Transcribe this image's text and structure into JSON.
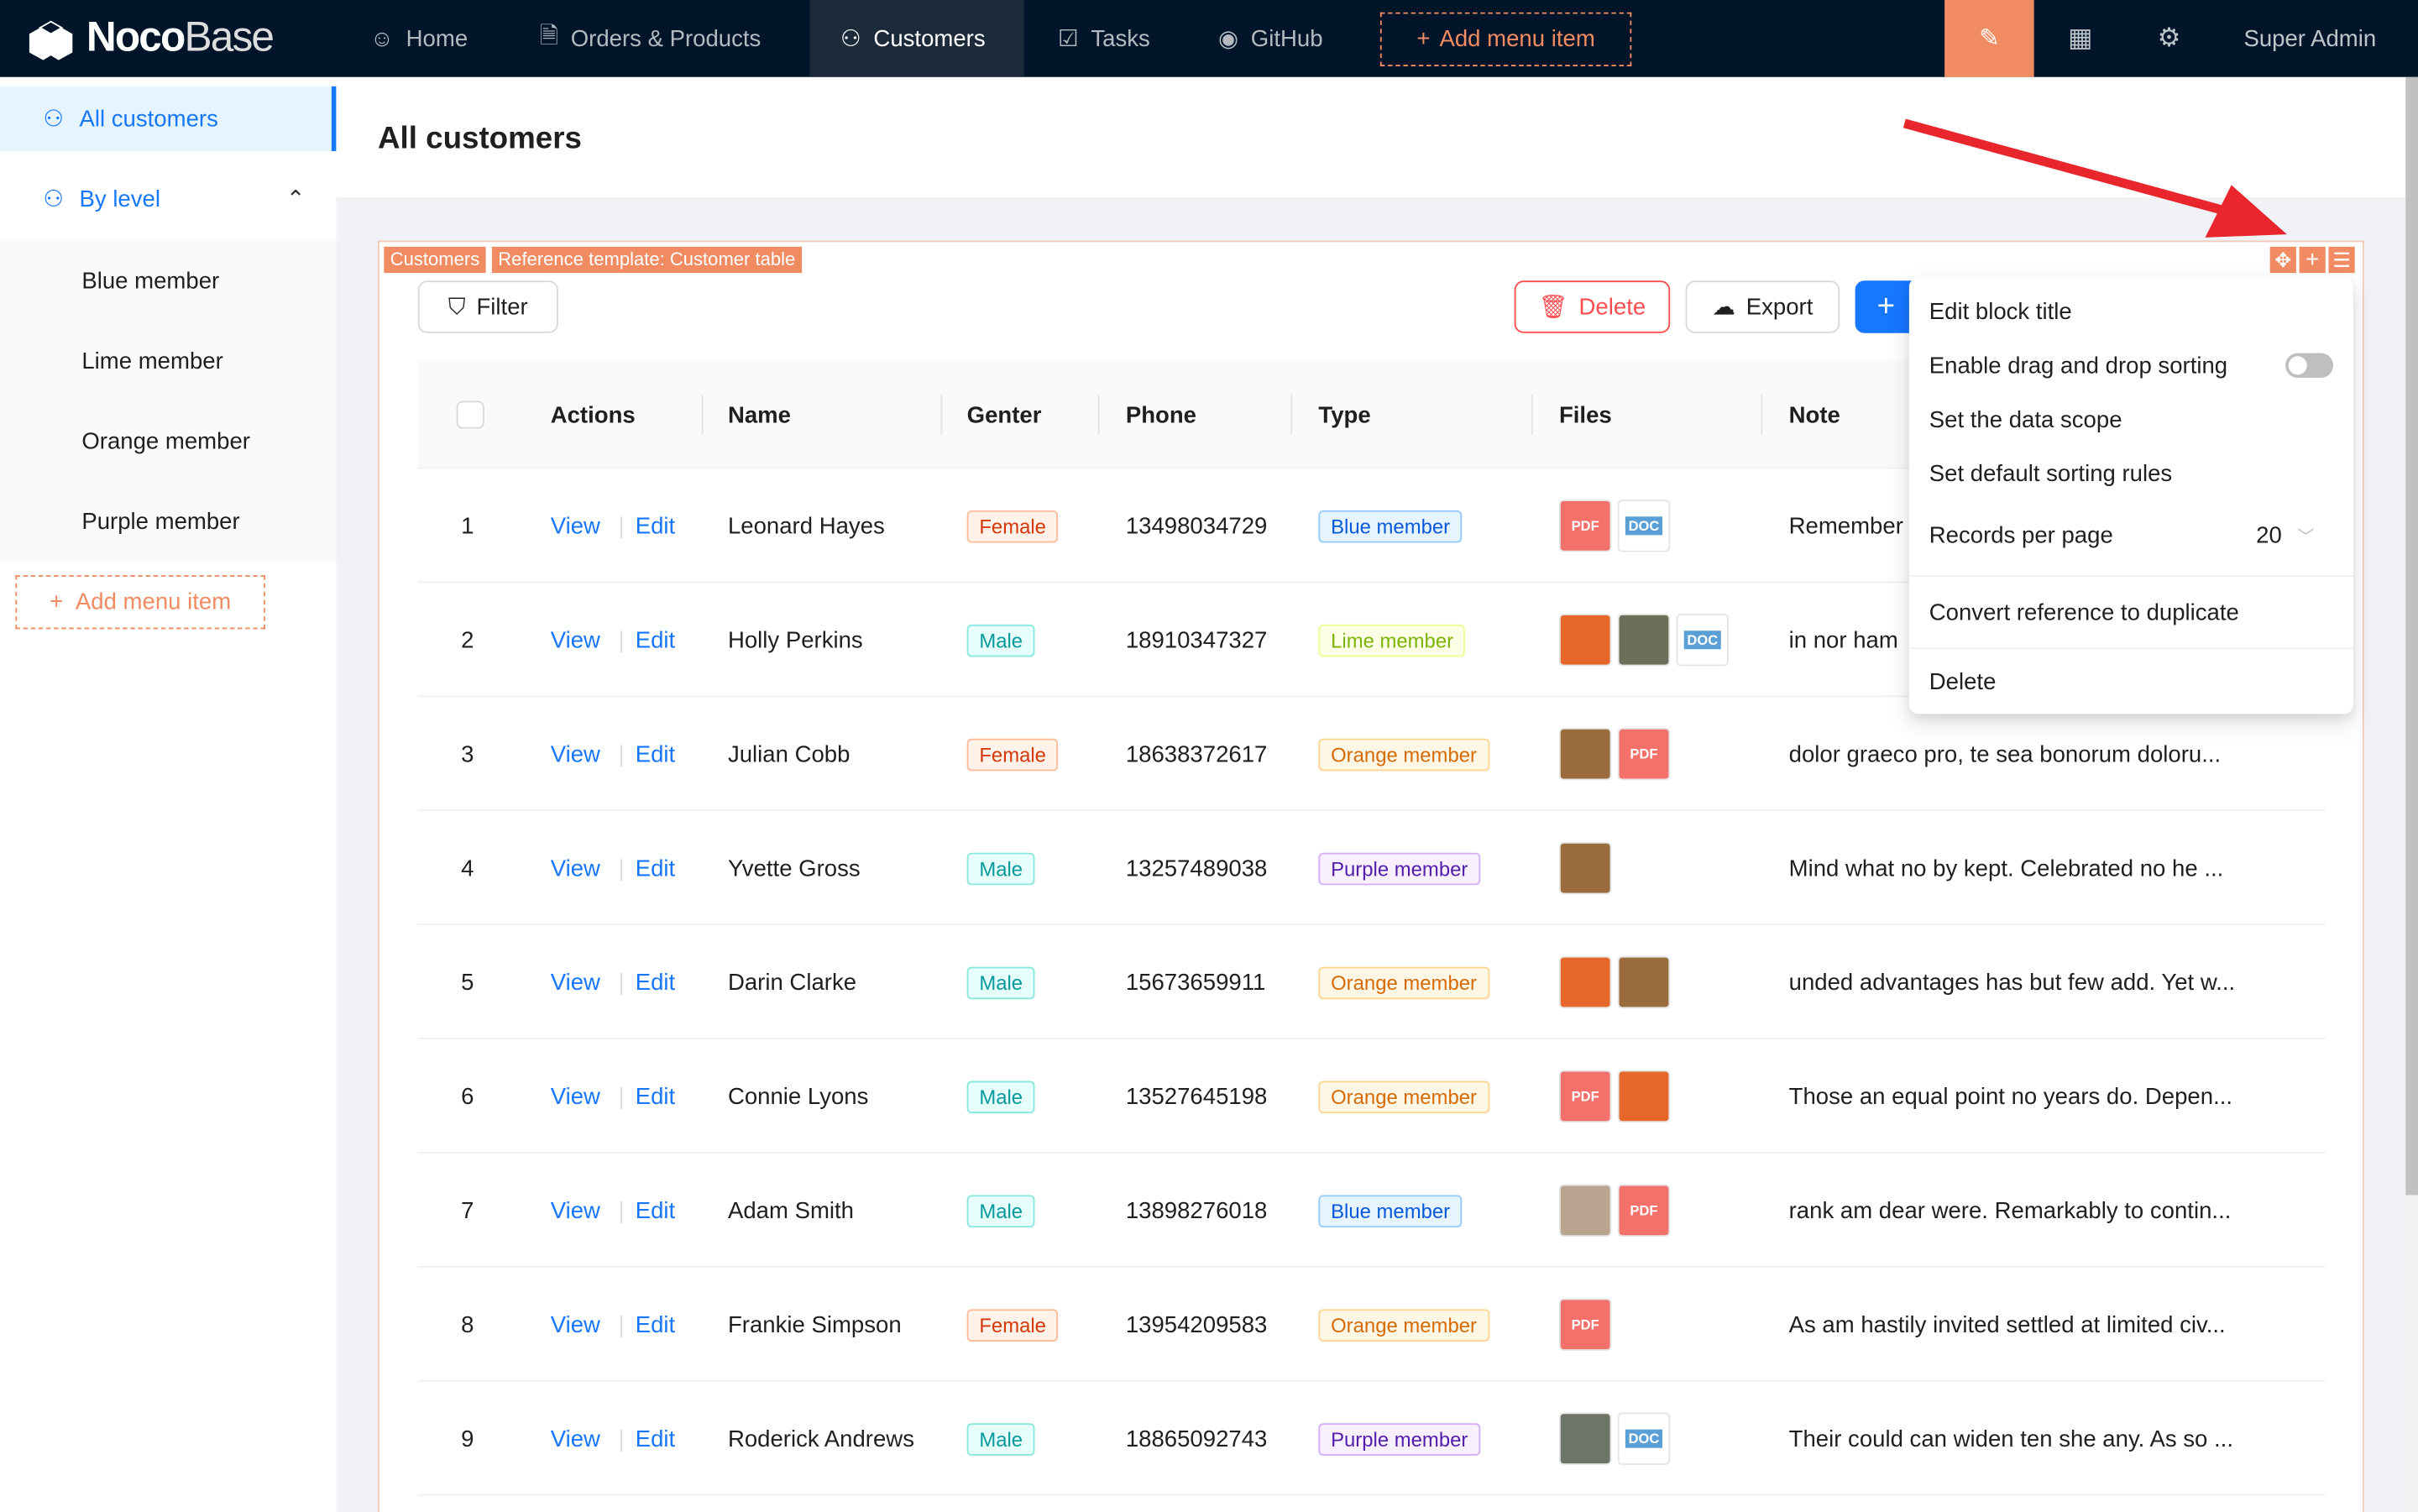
{
  "brand": {
    "name_bold": "Noco",
    "name_light": "Base"
  },
  "topnav": {
    "items": [
      {
        "label": "Home",
        "icon": "smile-icon"
      },
      {
        "label": "Orders & Products",
        "icon": "file-check-icon"
      },
      {
        "label": "Customers",
        "icon": "users-icon",
        "active": true
      },
      {
        "label": "Tasks",
        "icon": "checkbox-icon"
      },
      {
        "label": "GitHub",
        "icon": "github-icon"
      }
    ],
    "add_menu_item": "Add menu item",
    "user": "Super Admin"
  },
  "sidebar": {
    "items": [
      {
        "label": "All customers",
        "selected": true
      },
      {
        "label": "By level",
        "expanded": true
      }
    ],
    "subitems": [
      "Blue member",
      "Lime member",
      "Orange member",
      "Purple member"
    ],
    "add_menu_item": "Add menu item"
  },
  "page": {
    "title": "All customers"
  },
  "block": {
    "tags": [
      "Customers",
      "Reference template: Customer table"
    ],
    "filter": "Filter",
    "delete": "Delete",
    "export": "Export",
    "add": "+"
  },
  "table": {
    "columns": [
      "Actions",
      "Name",
      "Genter",
      "Phone",
      "Type",
      "Files",
      "Note"
    ],
    "rows": [
      {
        "index": "1",
        "view": "View",
        "edit": "Edit",
        "name": "Leonard Hayes",
        "gender": "Female",
        "phone": "13498034729",
        "type": "Blue member",
        "files": [
          "pdf",
          "doc"
        ],
        "note": "Remember"
      },
      {
        "index": "2",
        "view": "View",
        "edit": "Edit",
        "name": "Holly Perkins",
        "gender": "Male",
        "phone": "18910347327",
        "type": "Lime member",
        "files": [
          "img-orange",
          "img-grape",
          "doc"
        ],
        "note": "in nor ham"
      },
      {
        "index": "3",
        "view": "View",
        "edit": "Edit",
        "name": "Julian Cobb",
        "gender": "Female",
        "phone": "18638372617",
        "type": "Orange member",
        "files": [
          "img-market",
          "pdf"
        ],
        "note": "dolor graeco pro, te sea bonorum doloru..."
      },
      {
        "index": "4",
        "view": "View",
        "edit": "Edit",
        "name": "Yvette Gross",
        "gender": "Male",
        "phone": "13257489038",
        "type": "Purple member",
        "files": [
          "img-market"
        ],
        "note": "Mind what no by kept. Celebrated no he ..."
      },
      {
        "index": "5",
        "view": "View",
        "edit": "Edit",
        "name": "Darin Clarke",
        "gender": "Male",
        "phone": "15673659911",
        "type": "Orange member",
        "files": [
          "img-orange",
          "img-market"
        ],
        "note": "unded advantages has but few add. Yet w..."
      },
      {
        "index": "6",
        "view": "View",
        "edit": "Edit",
        "name": "Connie Lyons",
        "gender": "Male",
        "phone": "13527645198",
        "type": "Orange member",
        "files": [
          "pdf",
          "img-orange"
        ],
        "note": "Those an equal point no years do. Depen..."
      },
      {
        "index": "7",
        "view": "View",
        "edit": "Edit",
        "name": "Adam Smith",
        "gender": "Male",
        "phone": "13898276018",
        "type": "Blue member",
        "files": [
          "img-grain",
          "pdf"
        ],
        "note": "rank am dear were. Remarkably to contin..."
      },
      {
        "index": "8",
        "view": "View",
        "edit": "Edit",
        "name": "Frankie Simpson",
        "gender": "Female",
        "phone": "13954209583",
        "type": "Orange member",
        "files": [
          "pdf"
        ],
        "note": "As am hastily invited settled at limited civ..."
      },
      {
        "index": "9",
        "view": "View",
        "edit": "Edit",
        "name": "Roderick Andrews",
        "gender": "Male",
        "phone": "18865092743",
        "type": "Purple member",
        "files": [
          "img-street",
          "doc"
        ],
        "note": "Their could can widen ten she any. As so ..."
      }
    ]
  },
  "settings_menu": {
    "items": [
      "Edit block title",
      "Enable drag and drop sorting",
      "Set the data scope",
      "Set default sorting rules",
      "Records per page",
      "Convert reference to duplicate",
      "Delete"
    ],
    "drag_sort_enabled": false,
    "records_per_page": "20"
  },
  "colors": {
    "accent": "#1677ff",
    "designer": "#f18b62",
    "danger": "#ff4d4f",
    "topbar": "#001529",
    "arrow": "#e8262b"
  },
  "tag_colors": {
    "Female": [
      "#fff2e8",
      "#ffbb96",
      "#d4380d"
    ],
    "Male": [
      "#e6fffb",
      "#87e8de",
      "#08979c"
    ],
    "Blue member": [
      "#e6f4ff",
      "#91caff",
      "#0958d9"
    ],
    "Lime member": [
      "#fcffe6",
      "#eaff8f",
      "#7cb305"
    ],
    "Orange member": [
      "#fff7e6",
      "#ffd591",
      "#d46b08"
    ],
    "Purple member": [
      "#f9f0ff",
      "#d3adf7",
      "#531dab"
    ]
  }
}
